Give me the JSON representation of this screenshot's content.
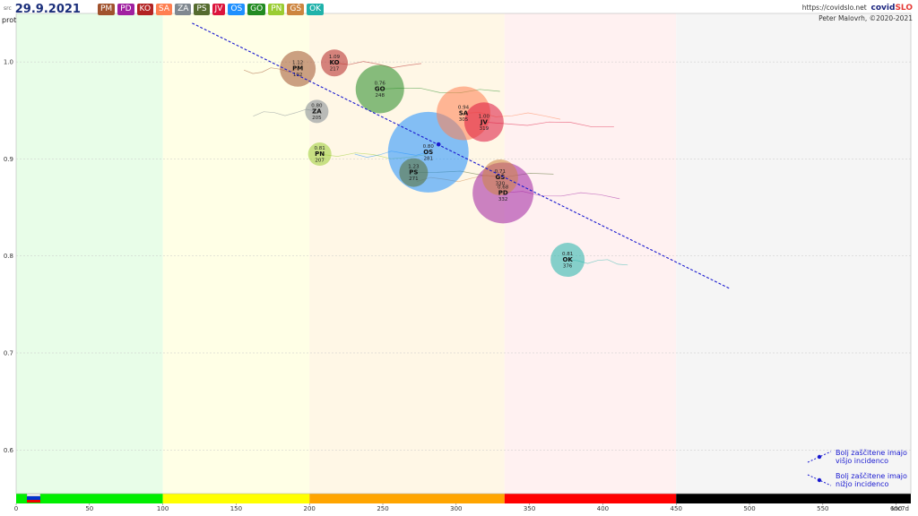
{
  "header": {
    "source_label": "src",
    "date": "29.9.2021",
    "region_badges": [
      {
        "label": "PM",
        "color": "#a0522d"
      },
      {
        "label": "PD",
        "color": "#a020a0"
      },
      {
        "label": "KO",
        "color": "#b22222"
      },
      {
        "label": "SA",
        "color": "#ff7f50"
      },
      {
        "label": "ZA",
        "color": "#808890"
      },
      {
        "label": "PS",
        "color": "#556b2f"
      },
      {
        "label": "JV",
        "color": "#dc143c"
      },
      {
        "label": "OS",
        "color": "#1e90ff"
      },
      {
        "label": "GO",
        "color": "#228b22"
      },
      {
        "label": "PN",
        "color": "#9acd32"
      },
      {
        "label": "GŠ",
        "color": "#cd853f"
      },
      {
        "label": "OK",
        "color": "#20b2aa"
      }
    ],
    "url": "https://covidslo.net",
    "brand_main": "covid",
    "brand_accent": "SLO",
    "author": "Peter Malovrh, ©2020-2021"
  },
  "chart_data": {
    "type": "scatter",
    "ylabel": "prot",
    "xlabel": "Inc7d",
    "xlim": [
      0,
      610
    ],
    "ylim": [
      0.555,
      1.05
    ],
    "x_ticks": [
      0,
      50,
      100,
      150,
      200,
      250,
      300,
      350,
      400,
      450,
      500,
      550,
      600
    ],
    "y_ticks": [
      0.6,
      0.7,
      0.8,
      0.9,
      1.0
    ],
    "grid": true,
    "background_bands": [
      {
        "from": 0,
        "to": 100,
        "color": "#e8fde8",
        "bar": "#00ee00"
      },
      {
        "from": 100,
        "to": 200,
        "color": "#ffffe6",
        "bar": "#ffff00"
      },
      {
        "from": 200,
        "to": 333,
        "color": "#fff7e6",
        "bar": "#ffa500"
      },
      {
        "from": 333,
        "to": 450,
        "color": "#fff1f1",
        "bar": "#ff0000"
      },
      {
        "from": 450,
        "to": 610,
        "color": "#f5f5f5",
        "bar": "#000000"
      }
    ],
    "regions": [
      {
        "code": "PM",
        "x": 192,
        "y": 0.993,
        "value_label": "1.12",
        "inc_label": "192",
        "size": 20,
        "color": "#a0522d"
      },
      {
        "code": "KO",
        "x": 217,
        "y": 0.999,
        "value_label": "1.09",
        "inc_label": "217",
        "size": 15,
        "color": "#b22222"
      },
      {
        "code": "GO",
        "x": 248,
        "y": 0.972,
        "value_label": "0.76",
        "inc_label": "248",
        "size": 27,
        "color": "#228b22"
      },
      {
        "code": "ZA",
        "x": 205,
        "y": 0.949,
        "value_label": "0.80",
        "inc_label": "205",
        "size": 13,
        "color": "#808890"
      },
      {
        "code": "SA",
        "x": 305,
        "y": 0.947,
        "value_label": "0.94",
        "inc_label": "305",
        "size": 30,
        "color": "#ff7f50"
      },
      {
        "code": "JV",
        "x": 319,
        "y": 0.938,
        "value_label": "1.00",
        "inc_label": "319",
        "size": 22,
        "color": "#dc143c"
      },
      {
        "code": "OS",
        "x": 281,
        "y": 0.907,
        "value_label": "0.80",
        "inc_label": "281",
        "size": 45,
        "color": "#1e90ff"
      },
      {
        "code": "PN",
        "x": 207,
        "y": 0.905,
        "value_label": "0.81",
        "inc_label": "207",
        "size": 13,
        "color": "#9acd32"
      },
      {
        "code": "PS",
        "x": 271,
        "y": 0.886,
        "value_label": "1.23",
        "inc_label": "271",
        "size": 16,
        "color": "#556b2f"
      },
      {
        "code": "GŠ",
        "x": 330,
        "y": 0.881,
        "value_label": "0.71",
        "inc_label": "330",
        "size": 20,
        "color": "#cd853f"
      },
      {
        "code": "PD",
        "x": 332,
        "y": 0.865,
        "value_label": "0.68",
        "inc_label": "332",
        "size": 34,
        "color": "#a020a0"
      },
      {
        "code": "OK",
        "x": 376,
        "y": 0.796,
        "value_label": "0.81",
        "inc_label": "376",
        "size": 19,
        "color": "#20b2aa"
      }
    ],
    "trend_line": {
      "x1": 120,
      "y1": 1.04,
      "x2": 487,
      "y2": 0.766,
      "dot_x": 288,
      "dot_y": 0.915,
      "color": "#1a1ad0"
    },
    "annotations": [
      {
        "text": "Bolj  zaščitene imajo",
        "line2": "višjo incidenco"
      },
      {
        "text": "Bolj  zaščitene imajo",
        "line2": "nižjo incidenco"
      }
    ]
  }
}
